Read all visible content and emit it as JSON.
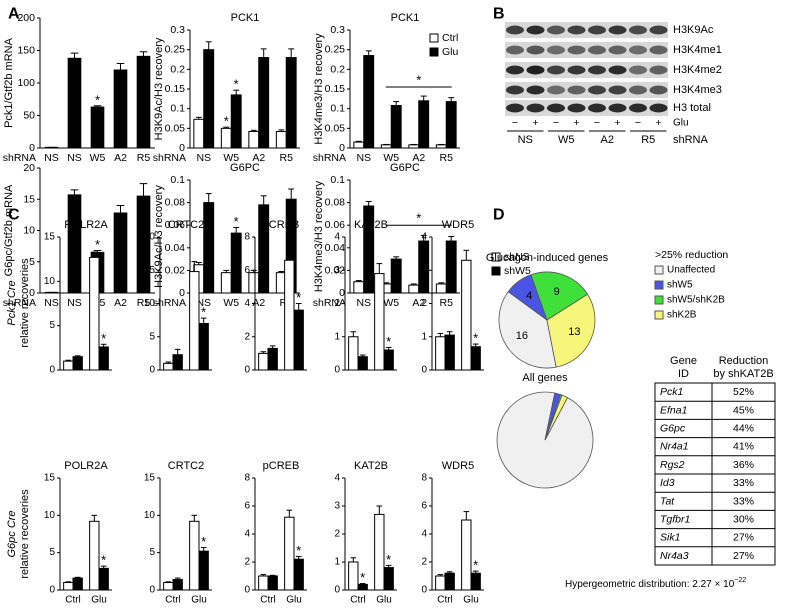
{
  "panel_labels": [
    "A",
    "B",
    "C",
    "D"
  ],
  "chart_data": [
    {
      "type": "bar",
      "ylabel": "Pck1/Gtf2b mRNA",
      "xlabel": "shRNA",
      "categories": [
        "NS",
        "NS",
        "W5",
        "A2",
        "R5"
      ],
      "values": [
        1,
        138,
        63,
        120,
        141
      ],
      "errors": [
        0,
        8,
        2,
        10,
        7
      ],
      "color": "#000000",
      "ylim": [
        0,
        200
      ],
      "yticks": [
        0,
        50,
        100,
        150,
        200
      ],
      "annotations": [
        {
          "text": "*",
          "index": 2
        }
      ]
    },
    {
      "type": "bar",
      "title": "PCK1",
      "ylabel": "H3K9Ac/H3 recovery",
      "xlabel": "shRNA",
      "categories": [
        "NS",
        "W5",
        "A2",
        "R5"
      ],
      "series": [
        {
          "name": "Ctrl",
          "color": "#ffffff",
          "values": [
            0.073,
            0.05,
            0.042,
            0.042
          ],
          "errors": [
            0.005,
            0.003,
            0.003,
            0.004
          ]
        },
        {
          "name": "Glu",
          "color": "#000000",
          "values": [
            0.25,
            0.135,
            0.23,
            0.23
          ],
          "errors": [
            0.02,
            0.012,
            0.022,
            0.022
          ]
        }
      ],
      "ylim": [
        0,
        0.3
      ],
      "yticks": [
        0,
        0.05,
        0.1,
        0.15,
        0.2,
        0.25,
        0.3
      ],
      "annotations": [
        {
          "text": "*",
          "index": 1,
          "series": 0
        },
        {
          "text": "*",
          "index": 1,
          "series": 1
        }
      ]
    },
    {
      "type": "bar",
      "title": "PCK1",
      "ylabel": "H3K4me3/H3 recovery",
      "xlabel": "shRNA",
      "categories": [
        "NS",
        "W5",
        "A2",
        "R5"
      ],
      "series": [
        {
          "name": "Ctrl",
          "color": "#ffffff",
          "values": [
            0.015,
            0.008,
            0.008,
            0.008
          ],
          "errors": [
            0.002,
            0.001,
            0.001,
            0.001
          ]
        },
        {
          "name": "Glu",
          "color": "#000000",
          "values": [
            0.235,
            0.108,
            0.12,
            0.118
          ],
          "errors": [
            0.012,
            0.01,
            0.012,
            0.01
          ]
        }
      ],
      "ylim": [
        0,
        0.3
      ],
      "yticks": [
        0,
        0.05,
        0.1,
        0.15,
        0.2,
        0.25,
        0.3
      ],
      "legend": "upper right",
      "annotations": [
        {
          "text": "*",
          "from": 1,
          "to": 3,
          "y": 0.155
        }
      ]
    },
    {
      "type": "bar",
      "ylabel": "G6pc/Gtf2b mRNA",
      "xlabel": "shRNA",
      "categories": [
        "NS",
        "NS",
        "W5",
        "A2",
        "R5"
      ],
      "values": [
        0.1,
        15.7,
        6.5,
        12.8,
        15.5
      ],
      "errors": [
        0,
        0.8,
        0.3,
        1.2,
        2
      ],
      "color": "#000000",
      "ylim": [
        0,
        20
      ],
      "yticks": [
        0,
        5,
        10,
        15,
        20
      ],
      "annotations": [
        {
          "text": "*",
          "index": 2
        }
      ]
    },
    {
      "type": "bar",
      "title": "G6PC",
      "ylabel": "H3K9Ac/H3 recovery",
      "xlabel": "shRNA",
      "categories": [
        "NS",
        "W5",
        "A2",
        "R5"
      ],
      "series": [
        {
          "name": "Ctrl",
          "color": "#ffffff",
          "values": [
            0.025,
            0.018,
            0.018,
            0.018
          ],
          "errors": [
            0.002,
            0.002,
            0.002,
            0.001
          ]
        },
        {
          "name": "Glu",
          "color": "#000000",
          "values": [
            0.08,
            0.053,
            0.078,
            0.083
          ],
          "errors": [
            0.008,
            0.005,
            0.008,
            0.009
          ]
        }
      ],
      "ylim": [
        0,
        0.1
      ],
      "yticks": [
        0,
        0.02,
        0.04,
        0.06,
        0.08,
        0.1
      ],
      "annotations": [
        {
          "text": "*",
          "index": 1,
          "series": 1
        }
      ]
    },
    {
      "type": "bar",
      "title": "G6PC",
      "ylabel": "H3K4me3/H3 recovery",
      "xlabel": "shRNA",
      "categories": [
        "NS",
        "W5",
        "A2",
        "R5"
      ],
      "series": [
        {
          "name": "Ctrl",
          "color": "#ffffff",
          "values": [
            0.01,
            0.008,
            0.007,
            0.008
          ],
          "errors": [
            0.001,
            0.001,
            0.001,
            0.001
          ]
        },
        {
          "name": "Glu",
          "color": "#000000",
          "values": [
            0.077,
            0.03,
            0.046,
            0.046
          ],
          "errors": [
            0.004,
            0.002,
            0.005,
            0.004
          ]
        }
      ],
      "ylim": [
        0,
        0.1
      ],
      "yticks": [
        0,
        0.02,
        0.04,
        0.06,
        0.08,
        0.1
      ],
      "annotations": [
        {
          "text": "*",
          "from": 1,
          "to": 3,
          "y": 0.06
        }
      ]
    },
    {
      "type": "bar",
      "title": "POLR2A",
      "categories": [
        null,
        null
      ],
      "series": [
        {
          "name": "shNS",
          "color": "#ffffff",
          "values": [
            1,
            12.7
          ],
          "errors": [
            0.1,
            0.6
          ]
        },
        {
          "name": "shW5",
          "color": "#000000",
          "values": [
            1.5,
            2.6
          ],
          "errors": [
            0.1,
            0.3
          ]
        }
      ],
      "ylim": [
        0,
        15
      ],
      "yticks": [
        0,
        5,
        10,
        15
      ],
      "annotations": [
        {
          "text": "*",
          "index": 1,
          "series": 1
        }
      ]
    },
    {
      "type": "bar",
      "title": "CRTC2",
      "categories": [
        null,
        null
      ],
      "series": [
        {
          "name": "shNS",
          "color": "#ffffff",
          "values": [
            1,
            14.8
          ],
          "errors": [
            0.2,
            1.5
          ]
        },
        {
          "name": "shW5",
          "color": "#000000",
          "values": [
            2.3,
            7
          ],
          "errors": [
            0.8,
            0.8
          ]
        }
      ],
      "ylim": [
        0,
        20
      ],
      "yticks": [
        0,
        5,
        10,
        15,
        20
      ],
      "annotations": [
        {
          "text": "*",
          "index": 1,
          "series": 1
        }
      ]
    },
    {
      "type": "bar",
      "title": "pCREB",
      "categories": [
        null,
        null
      ],
      "series": [
        {
          "name": "shNS",
          "color": "#ffffff",
          "values": [
            1,
            6.6
          ],
          "errors": [
            0.1,
            0.8
          ]
        },
        {
          "name": "shW5",
          "color": "#000000",
          "values": [
            1.3,
            3.6
          ],
          "errors": [
            0.15,
            0.4
          ]
        }
      ],
      "ylim": [
        0,
        8
      ],
      "yticks": [
        0,
        2,
        4,
        6,
        8
      ],
      "annotations": [
        {
          "text": "*",
          "index": 1,
          "series": 1
        }
      ]
    },
    {
      "type": "bar",
      "title": "KAT2B",
      "categories": [
        null,
        null
      ],
      "series": [
        {
          "name": "shNS",
          "color": "#ffffff",
          "values": [
            1,
            2.9
          ],
          "errors": [
            0.15,
            0.3
          ]
        },
        {
          "name": "shW5",
          "color": "#000000",
          "values": [
            0.4,
            0.6
          ],
          "errors": [
            0.05,
            0.08
          ]
        }
      ],
      "ylim": [
        0,
        4
      ],
      "yticks": [
        0,
        1,
        2,
        3,
        4
      ],
      "annotations": [
        {
          "text": "*",
          "index": 1,
          "series": 1
        }
      ]
    },
    {
      "type": "bar",
      "title": "WDR5",
      "categories": [
        null,
        null
      ],
      "series": [
        {
          "name": "shNS",
          "color": "#ffffff",
          "values": [
            1,
            3.3
          ],
          "errors": [
            0.1,
            0.3
          ]
        },
        {
          "name": "shW5",
          "color": "#000000",
          "values": [
            1.05,
            0.7
          ],
          "errors": [
            0.1,
            0.08
          ]
        }
      ],
      "ylim": [
        0,
        4
      ],
      "yticks": [
        0,
        1,
        2,
        3,
        4
      ],
      "legend": "right",
      "annotations": [
        {
          "text": "*",
          "index": 1,
          "series": 1
        }
      ]
    },
    {
      "type": "bar",
      "title": "POLR2A",
      "categories": [
        "Ctrl",
        "Glu"
      ],
      "series": [
        {
          "name": "shNS",
          "color": "#ffffff",
          "values": [
            1,
            9.2
          ],
          "errors": [
            0.1,
            0.8
          ]
        },
        {
          "name": "shW5",
          "color": "#000000",
          "values": [
            1.6,
            2.9
          ],
          "errors": [
            0.1,
            0.3
          ]
        }
      ],
      "ylim": [
        0,
        15
      ],
      "yticks": [
        0,
        5,
        10,
        15
      ],
      "annotations": [
        {
          "text": "*",
          "index": 1,
          "series": 1
        }
      ]
    },
    {
      "type": "bar",
      "title": "CRTC2",
      "categories": [
        "Ctrl",
        "Glu"
      ],
      "series": [
        {
          "name": "shNS",
          "color": "#ffffff",
          "values": [
            1,
            9.2
          ],
          "errors": [
            0.1,
            0.8
          ]
        },
        {
          "name": "shW5",
          "color": "#000000",
          "values": [
            1.4,
            5.2
          ],
          "errors": [
            0.2,
            0.5
          ]
        }
      ],
      "ylim": [
        0,
        15
      ],
      "yticks": [
        0,
        5,
        10,
        15
      ],
      "annotations": [
        {
          "text": "*",
          "index": 1,
          "series": 1
        }
      ]
    },
    {
      "type": "bar",
      "title": "pCREB",
      "categories": [
        "Ctrl",
        "Glu"
      ],
      "series": [
        {
          "name": "shNS",
          "color": "#ffffff",
          "values": [
            1,
            5.2
          ],
          "errors": [
            0.1,
            0.5
          ]
        },
        {
          "name": "shW5",
          "color": "#000000",
          "values": [
            1,
            2.2
          ],
          "errors": [
            0.05,
            0.2
          ]
        }
      ],
      "ylim": [
        0,
        8
      ],
      "yticks": [
        0,
        2,
        4,
        6,
        8
      ],
      "annotations": [
        {
          "text": "*",
          "index": 1,
          "series": 1
        }
      ]
    },
    {
      "type": "bar",
      "title": "KAT2B",
      "categories": [
        "Ctrl",
        "Glu"
      ],
      "series": [
        {
          "name": "shNS",
          "color": "#ffffff",
          "values": [
            1,
            2.7
          ],
          "errors": [
            0.15,
            0.3
          ]
        },
        {
          "name": "shW5",
          "color": "#000000",
          "values": [
            0.2,
            0.8
          ],
          "errors": [
            0.03,
            0.08
          ]
        }
      ],
      "ylim": [
        0,
        4
      ],
      "yticks": [
        0,
        1,
        2,
        3,
        4
      ],
      "annotations": [
        {
          "text": "*",
          "index": 0,
          "series": 1
        },
        {
          "text": "*",
          "index": 1,
          "series": 1
        }
      ]
    },
    {
      "type": "bar",
      "title": "WDR5",
      "categories": [
        "Ctrl",
        "Glu"
      ],
      "series": [
        {
          "name": "shNS",
          "color": "#ffffff",
          "values": [
            1,
            5
          ],
          "errors": [
            0.1,
            0.6
          ]
        },
        {
          "name": "shW5",
          "color": "#000000",
          "values": [
            1.2,
            1.2
          ],
          "errors": [
            0.1,
            0.15
          ]
        }
      ],
      "ylim": [
        0,
        8
      ],
      "yticks": [
        0,
        2,
        4,
        6,
        8
      ],
      "annotations": [
        {
          "text": "*",
          "index": 1,
          "series": 1
        }
      ]
    },
    {
      "type": "pie",
      "title": "Glucagon-induced genes",
      "labels": [
        "Unaffected",
        "shW5",
        "shW5/shK2B",
        "shK2B"
      ],
      "values": [
        16,
        4,
        9,
        13
      ],
      "colors": [
        "#f0f0f0",
        "#4a55e6",
        "#3fe03a",
        "#f6f67a"
      ],
      "show_values": true,
      "legend": "right",
      "legend_title": ">25% reduction"
    },
    {
      "type": "pie",
      "title": "All genes",
      "values": [
        95.5,
        2,
        0.5,
        2
      ],
      "colors": [
        "#f0f0f0",
        "#4a55e6",
        "#3fe03a",
        "#f6f67a"
      ]
    }
  ],
  "panel_c": {
    "row_labels": [
      [
        "Pck1 Cre",
        "relative recoveries"
      ],
      [
        "G6pc Cre",
        "relative recoveries"
      ]
    ]
  },
  "blot": {
    "rows": [
      "H3K9Ac",
      "H3K4me1",
      "H3K4me2",
      "H3K4me3",
      "H3 total"
    ],
    "treatment": "Glu",
    "signs": [
      "−",
      "+",
      "−",
      "+",
      "−",
      "+",
      "−",
      "+"
    ],
    "groups": [
      "NS",
      "W5",
      "A2",
      "R5"
    ],
    "group_label": "shRNA"
  },
  "table": {
    "header": [
      [
        "Gene",
        "ID"
      ],
      [
        "Reduction",
        "by shKAT2B"
      ]
    ],
    "rows": [
      [
        "Pck1",
        "52%"
      ],
      [
        "Efna1",
        "45%"
      ],
      [
        "G6pc",
        "44%"
      ],
      [
        "Nr4a1",
        "41%"
      ],
      [
        "Rgs2",
        "36%"
      ],
      [
        "Id3",
        "33%"
      ],
      [
        "Tat",
        "33%"
      ],
      [
        "Tgfbr1",
        "30%"
      ],
      [
        "Sik1",
        "27%"
      ],
      [
        "Nr4a3",
        "27%"
      ]
    ]
  },
  "footnote": {
    "text": "Hypergeometric distribution: 2.27 × 10",
    "exponent": "−22"
  }
}
